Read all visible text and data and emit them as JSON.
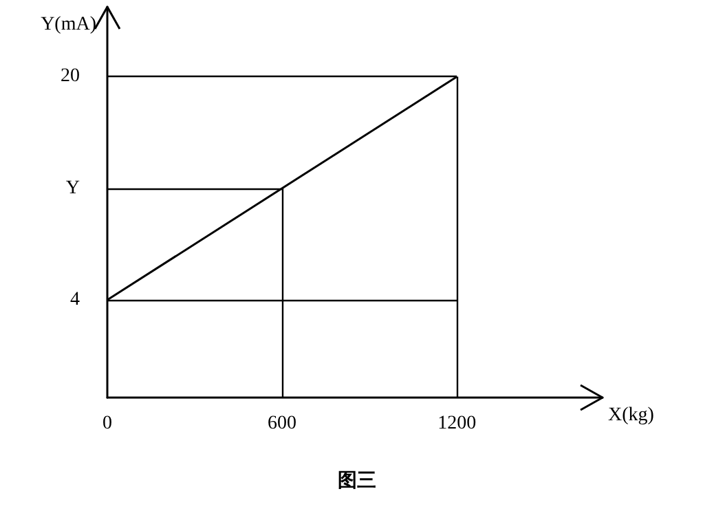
{
  "chart_data": {
    "type": "line",
    "title": "图三",
    "xlabel": "X(kg)",
    "ylabel": "Y(mA)",
    "x": [
      0,
      1200
    ],
    "series": [
      {
        "color": "#000000",
        "values": [
          4,
          20
        ]
      }
    ],
    "xlim": [
      0,
      1700
    ],
    "xticks": [
      0,
      600,
      1200
    ],
    "ylim": [
      -3,
      25
    ],
    "yticks": [
      4,
      {
        "value": 12,
        "label": "Y"
      },
      20
    ],
    "ref_lines": [
      {
        "axis": "y",
        "value": 4
      },
      {
        "axis": "y",
        "value": 12
      },
      {
        "axis": "y",
        "value": 20
      },
      {
        "axis": "x",
        "value": 600
      },
      {
        "axis": "x",
        "value": 1200
      }
    ],
    "marker": "none",
    "line_style": "solid",
    "grid": false
  }
}
